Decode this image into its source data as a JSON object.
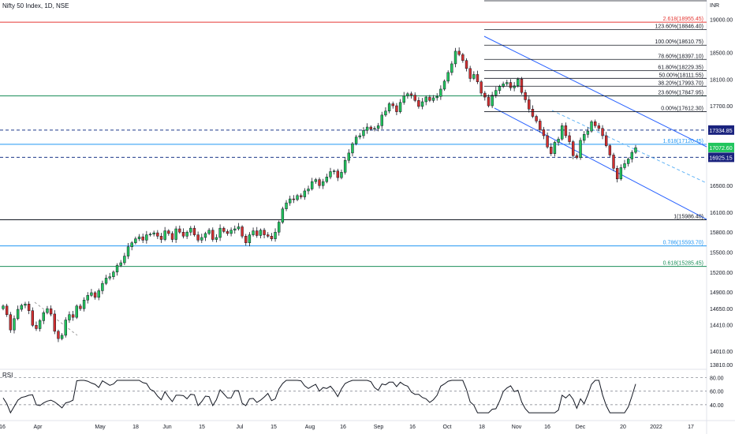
{
  "header": {
    "title": "Nifty 50 Index, 1D, NSE",
    "currency": "INR"
  },
  "rsi": {
    "label": "RSI"
  },
  "colors": {
    "up": "#26a69a",
    "up_body": "#21c55d",
    "down": "#d32f2f",
    "fib": "#131722",
    "channel": "#2962ff",
    "hline_red": "#e53935",
    "hline_green": "#1b8e5a",
    "hline_blue": "#2196f3",
    "dash_blue": "#1e3a8a"
  },
  "chart_data": {
    "type": "candlestick",
    "symbol": "Nifty 50 Index",
    "interval": "1D",
    "exchange": "NSE",
    "y_range": [
      13810,
      19100
    ],
    "price_ticks": [
      {
        "value": 19000,
        "label": "19000.00"
      },
      {
        "value": 18500,
        "label": "18500.00"
      },
      {
        "value": 18100,
        "label": "18100.00"
      },
      {
        "value": 17700,
        "label": "17700.00"
      },
      {
        "value": 16500,
        "label": "16500.00"
      },
      {
        "value": 16100,
        "label": "16100.00"
      },
      {
        "value": 15800,
        "label": "15800.00"
      },
      {
        "value": 15500,
        "label": "15500.00"
      },
      {
        "value": 15200,
        "label": "15200.00"
      },
      {
        "value": 14900,
        "label": "14900.00"
      },
      {
        "value": 14650,
        "label": "14650.00"
      },
      {
        "value": 14410,
        "label": "14410.00"
      },
      {
        "value": 14010,
        "label": "14010.00"
      },
      {
        "value": 13810,
        "label": "13810.00"
      }
    ],
    "x_labels": [
      "16",
      "Apr",
      "May",
      "18",
      "Jun",
      "15",
      "Jul",
      "15",
      "Aug",
      "16",
      "Sep",
      "16",
      "Oct",
      "18",
      "Nov",
      "16",
      "Dec",
      "20",
      "2022",
      "17"
    ],
    "fib_retracement": [
      {
        "label": "100.00%(18610.75)",
        "value": 18610.75
      },
      {
        "label": "78.60%(18397.10)",
        "value": 18397.1
      },
      {
        "label": "61.80%(18229.35)",
        "value": 18229.35
      },
      {
        "label": "50.00%(18111.55)",
        "value": 18111.55
      },
      {
        "label": "38.20%(17993.70)",
        "value": 17993.7
      },
      {
        "label": "23.60%(17847.95)",
        "value": 17847.95
      },
      {
        "label": "0.00%(17612.30)",
        "value": 17612.3
      }
    ],
    "fib_extension": [
      {
        "label": "2.618(18955.45)",
        "value": 18955.45
      },
      {
        "label": "1.618(17120.45)",
        "value": 17120.45
      },
      {
        "label": "1(15986.40)",
        "value": 15986.4
      },
      {
        "label": "0.786(15593.70)",
        "value": 15593.7
      },
      {
        "label": "0.618(15285.45)",
        "value": 15285.45
      }
    ],
    "extra_level": {
      "label": "123.60%(18846.40)",
      "value": 18846.4
    },
    "price_tags": [
      {
        "label": "17334.85",
        "value": 17334.85,
        "bg": "#1a237e"
      },
      {
        "label": "17072.60",
        "value": 17072.6,
        "bg": "#22c55e"
      },
      {
        "label": "16925.15",
        "value": 16925.15,
        "bg": "#1a237e"
      }
    ],
    "horizontal_lines": [
      {
        "value": 18955.45,
        "color": "red"
      },
      {
        "value": 17847.95,
        "color": "green"
      },
      {
        "value": 17120.45,
        "color": "blue"
      },
      {
        "value": 15593.7,
        "color": "blue"
      },
      {
        "value": 15285.45,
        "color": "green"
      },
      {
        "value": 15986.4,
        "color": "black"
      }
    ],
    "dashed_lines": [
      17334.85,
      16925.15
    ],
    "closes": [
      14690,
      14560,
      14330,
      14500,
      14640,
      14700,
      14720,
      14620,
      14400,
      14350,
      14470,
      14590,
      14650,
      14570,
      14310,
      14200,
      14250,
      14480,
      14560,
      14520,
      14690,
      14650,
      14780,
      14850,
      14890,
      14820,
      14920,
      15030,
      15110,
      15130,
      15200,
      15300,
      15340,
      15440,
      15580,
      15640,
      15700,
      15730,
      15680,
      15760,
      15770,
      15790,
      15740,
      15690,
      15820,
      15780,
      15690,
      15850,
      15800,
      15740,
      15800,
      15860,
      15760,
      15680,
      15720,
      15780,
      15830,
      15690,
      15720,
      15860,
      15810,
      15780,
      15830,
      15850,
      15880,
      15740,
      15640,
      15760,
      15820,
      15750,
      15830,
      15760,
      15740,
      15700,
      15800,
      15950,
      16150,
      16240,
      16300,
      16290,
      16350,
      16330,
      16420,
      16450,
      16560,
      16590,
      16500,
      16560,
      16630,
      16710,
      16720,
      16620,
      16700,
      16880,
      16990,
      17130,
      17230,
      17250,
      17330,
      17380,
      17350,
      17360,
      17400,
      17560,
      17620,
      17730,
      17700,
      17610,
      17750,
      17850,
      17880,
      17860,
      17780,
      17690,
      17760,
      17830,
      17780,
      17820,
      17840,
      17950,
      18070,
      18200,
      18330,
      18520,
      18470,
      18380,
      18260,
      18110,
      18170,
      18060,
      17890,
      17830,
      17700,
      17860,
      17930,
      17990,
      18030,
      18050,
      17970,
      18000,
      18100,
      17900,
      17790,
      17650,
      17540,
      17470,
      17340,
      17250,
      17080,
      16980,
      17150,
      17200,
      17400,
      17250,
      17160,
      16950,
      16920,
      17180,
      17270,
      17320,
      17460,
      17400,
      17360,
      17250,
      17100,
      16960,
      16760,
      16600,
      16770,
      16830,
      16900,
      17000,
      17070
    ],
    "rsi_levels": [
      80,
      60,
      40
    ],
    "rsi_ticks": [
      "80.00",
      "60.00",
      "40.00"
    ]
  }
}
